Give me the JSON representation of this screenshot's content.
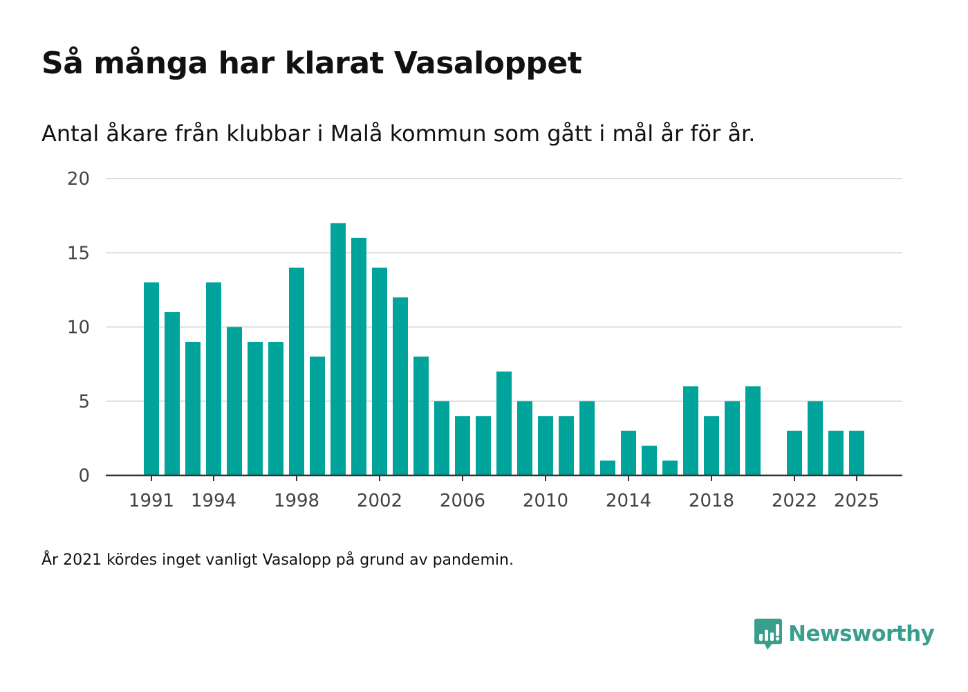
{
  "title": "Så många har klarat Vasaloppet",
  "subtitle": "Antal åkare från klubbar i Malå kommun som gått i mål år för år.",
  "footnote": "År 2021 kördes inget vanligt Vasalopp på grund av pandemin.",
  "brand": {
    "name": "Newsworthy",
    "icon": "newsworthy-logo-icon",
    "color": "#3a9e8f"
  },
  "chart_data": {
    "type": "bar",
    "title": "Så många har klarat Vasaloppet",
    "subtitle": "Antal åkare från klubbar i Malå kommun som gått i mål år för år.",
    "xlabel": "",
    "ylabel": "",
    "ylim": [
      0,
      20
    ],
    "yticks": [
      0,
      5,
      10,
      15,
      20
    ],
    "xticks": [
      1991,
      1994,
      1998,
      2002,
      2006,
      2010,
      2014,
      2018,
      2022,
      2025
    ],
    "grid": true,
    "bar_color": "#00a49a",
    "categories": [
      1991,
      1992,
      1993,
      1994,
      1995,
      1996,
      1997,
      1998,
      1999,
      2000,
      2001,
      2002,
      2003,
      2004,
      2005,
      2006,
      2007,
      2008,
      2009,
      2010,
      2011,
      2012,
      2013,
      2014,
      2015,
      2016,
      2017,
      2018,
      2019,
      2020,
      2021,
      2022,
      2023,
      2024,
      2025
    ],
    "values": [
      13,
      11,
      9,
      13,
      10,
      9,
      9,
      14,
      8,
      17,
      16,
      14,
      12,
      8,
      5,
      4,
      4,
      7,
      5,
      4,
      4,
      5,
      1,
      3,
      2,
      1,
      6,
      4,
      5,
      6,
      null,
      3,
      5,
      3,
      3
    ]
  }
}
